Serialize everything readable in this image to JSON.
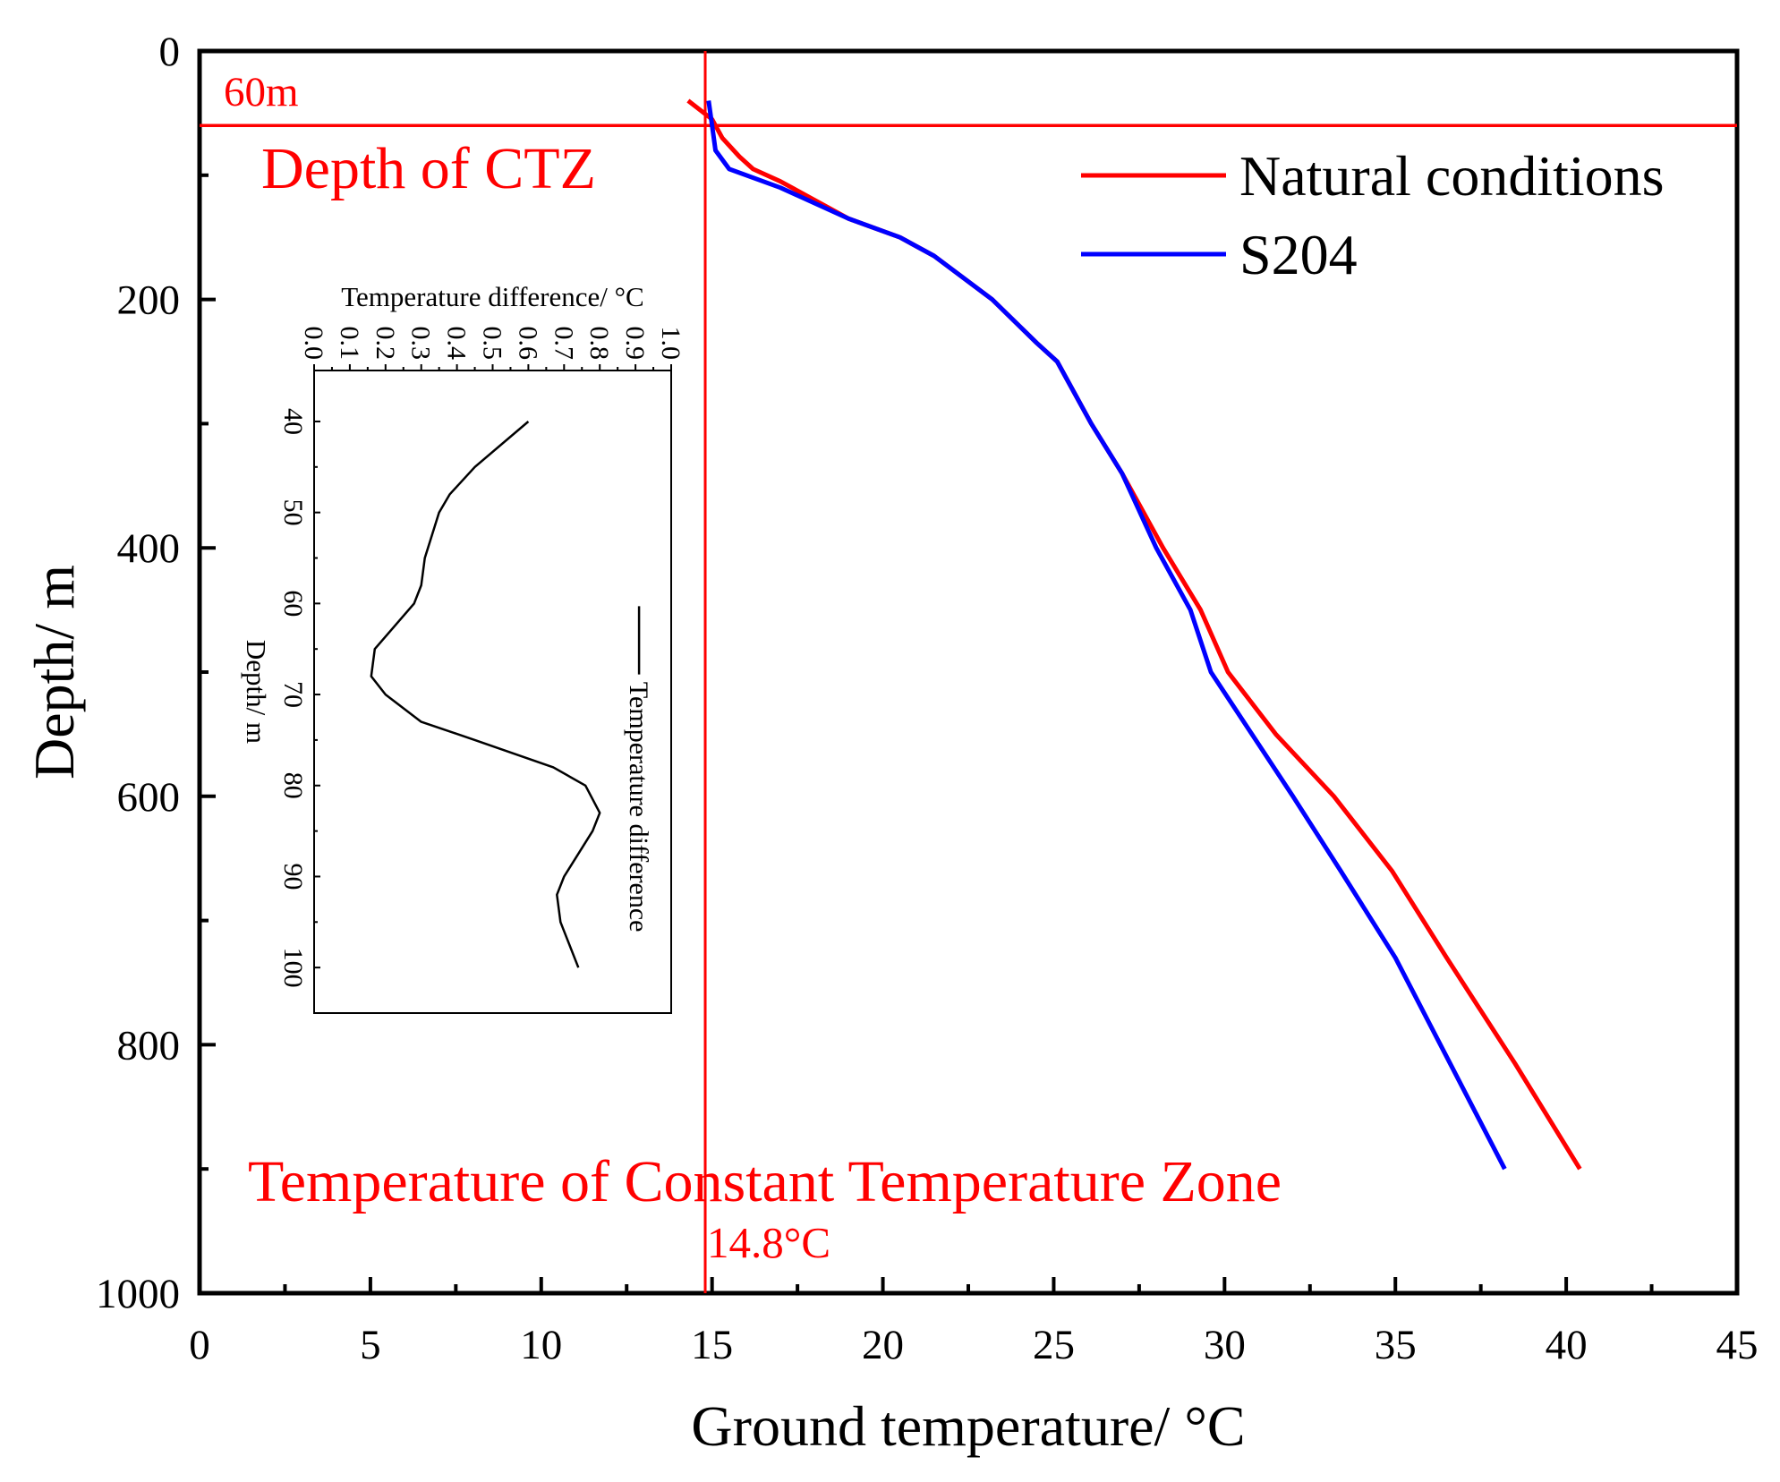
{
  "chart_data": [
    {
      "type": "line",
      "xlabel": "Ground temperature/ °C",
      "ylabel": "Depth/ m",
      "xlim": [
        0,
        45
      ],
      "ylim": [
        0,
        1000
      ],
      "y_inverted": true,
      "xticks": [
        0,
        5,
        10,
        15,
        20,
        25,
        30,
        35,
        40,
        45
      ],
      "yticks": [
        0,
        200,
        400,
        600,
        800,
        1000
      ],
      "grid": false,
      "legend_position": "top-right",
      "series": [
        {
          "name": "Natural conditions",
          "color": "#ff0000",
          "points": [
            [
              14.3,
              40
            ],
            [
              15.0,
              55
            ],
            [
              15.3,
              70
            ],
            [
              15.8,
              85
            ],
            [
              16.2,
              95
            ],
            [
              17.0,
              105
            ],
            [
              19.0,
              135
            ],
            [
              20.5,
              150
            ],
            [
              21.5,
              165
            ],
            [
              23.2,
              200
            ],
            [
              24.5,
              235
            ],
            [
              25.1,
              250
            ],
            [
              26.1,
              300
            ],
            [
              27.0,
              340
            ],
            [
              28.2,
              400
            ],
            [
              29.3,
              450
            ],
            [
              30.1,
              500
            ],
            [
              31.5,
              550
            ],
            [
              33.2,
              600
            ],
            [
              34.9,
              660
            ],
            [
              36.5,
              730
            ],
            [
              38.5,
              815
            ],
            [
              40.4,
              900
            ]
          ]
        },
        {
          "name": "S204",
          "color": "#0000ff",
          "points": [
            [
              14.9,
              40
            ],
            [
              15.0,
              60
            ],
            [
              15.1,
              80
            ],
            [
              15.5,
              95
            ],
            [
              17.0,
              110
            ],
            [
              19.0,
              135
            ],
            [
              20.5,
              150
            ],
            [
              21.5,
              165
            ],
            [
              23.2,
              200
            ],
            [
              24.5,
              235
            ],
            [
              25.1,
              250
            ],
            [
              26.1,
              300
            ],
            [
              27.0,
              340
            ],
            [
              28.0,
              400
            ],
            [
              29.0,
              450
            ],
            [
              29.6,
              500
            ],
            [
              30.8,
              550
            ],
            [
              32.0,
              600
            ],
            [
              33.4,
              660
            ],
            [
              35.0,
              730
            ],
            [
              36.6,
              815
            ],
            [
              38.2,
              900
            ]
          ]
        }
      ],
      "reference_lines": {
        "vertical_temperature": 14.8,
        "horizontal_depth": 60,
        "color": "#ff0000"
      },
      "annotations": {
        "depth_value": "60m",
        "depth_label": "Depth of CTZ",
        "temperature_label": "Temperature of Constant Temperature Zone",
        "temperature_value": "14.8°C"
      }
    },
    {
      "type": "line",
      "inset": true,
      "rotated": "90-clockwise",
      "xlabel": "Depth/ m",
      "ylabel": "Temperature difference/ °C",
      "xlim": [
        34.4,
        105
      ],
      "ylim": [
        0,
        1.0
      ],
      "xticks": [
        40,
        50,
        60,
        70,
        80,
        90,
        100
      ],
      "yticks": [
        "0.0",
        "0.1",
        "0.2",
        "0.3",
        "0.4",
        "0.5",
        "0.6",
        "0.7",
        "0.8",
        "0.9",
        "1.0"
      ],
      "legend_position": "right",
      "series": [
        {
          "name": "Temperature difference",
          "color": "#000000",
          "points": [
            [
              40,
              0.6
            ],
            [
              45,
              0.45
            ],
            [
              48,
              0.38
            ],
            [
              50,
              0.35
            ],
            [
              55,
              0.31
            ],
            [
              58,
              0.3
            ],
            [
              60,
              0.28
            ],
            [
              65,
              0.17
            ],
            [
              68,
              0.16
            ],
            [
              70,
              0.2
            ],
            [
              73,
              0.3
            ],
            [
              75,
              0.45
            ],
            [
              78,
              0.67
            ],
            [
              80,
              0.76
            ],
            [
              83,
              0.8
            ],
            [
              85,
              0.78
            ],
            [
              90,
              0.7
            ],
            [
              92,
              0.68
            ],
            [
              95,
              0.69
            ],
            [
              100,
              0.74
            ]
          ]
        }
      ]
    }
  ]
}
